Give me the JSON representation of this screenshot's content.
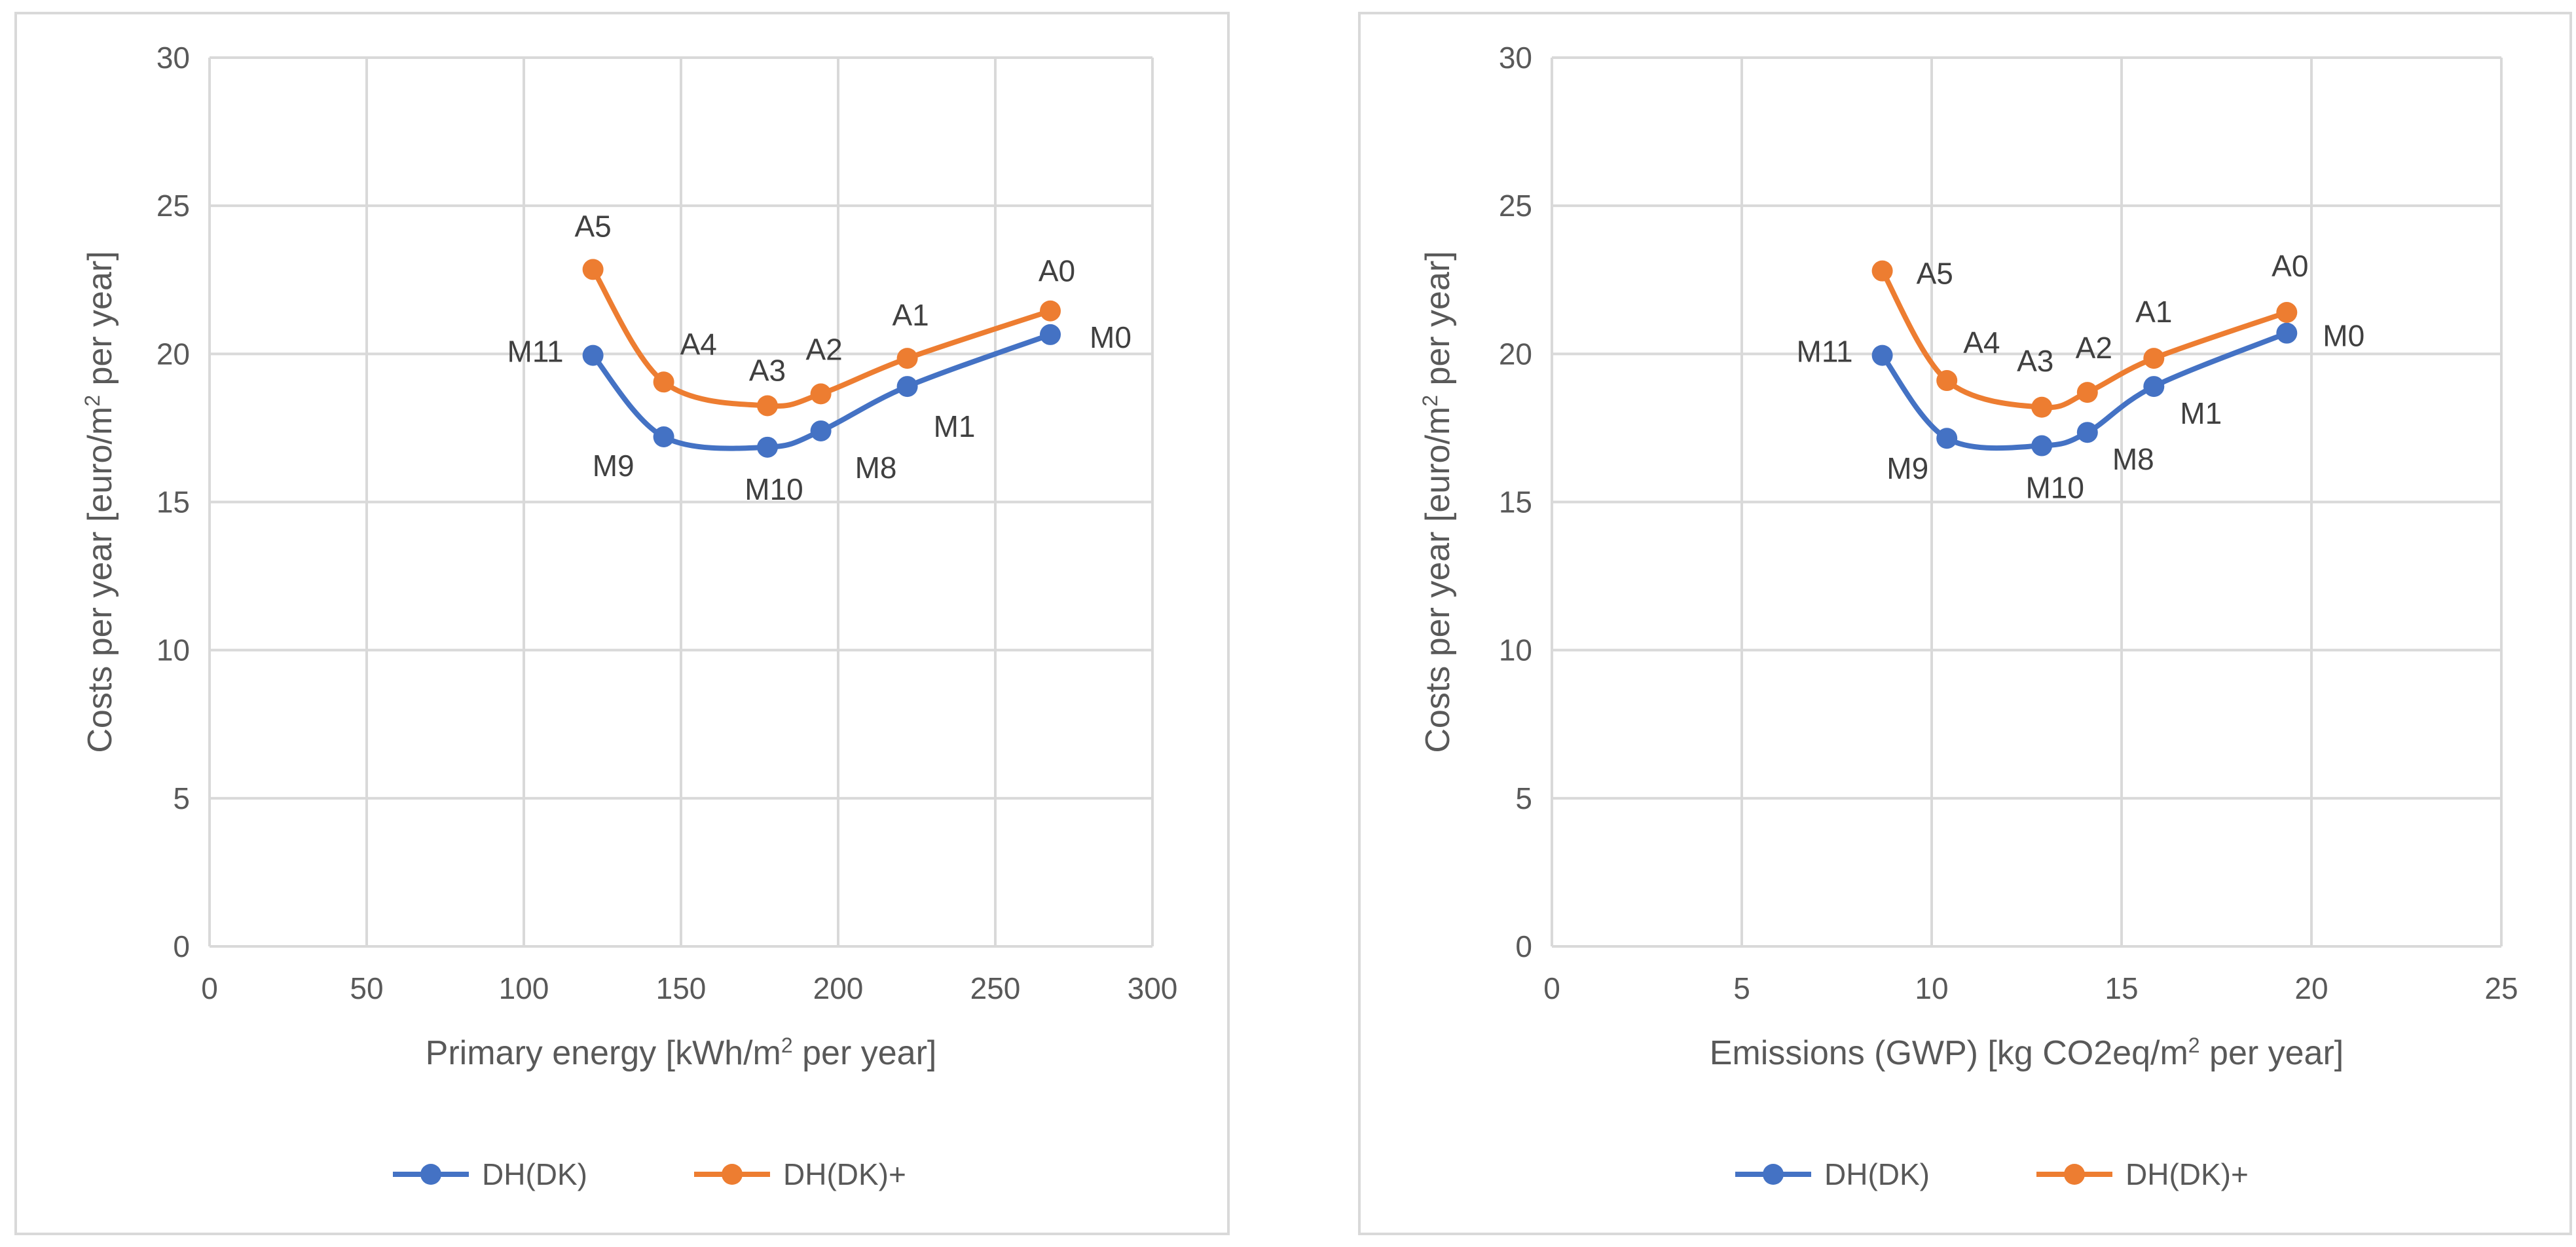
{
  "colors": {
    "series_blue": "#4472c4",
    "series_orange": "#ed7d31",
    "grid": "#d9d9d9",
    "axis_text": "#595959",
    "label_text": "#404040"
  },
  "chart_data": [
    {
      "type": "line",
      "title": "",
      "xlabel_parts": [
        "Primary energy [kWh/m",
        "2",
        " per year]"
      ],
      "ylabel_parts": [
        "Costs per year [euro/m",
        "2",
        " per year]"
      ],
      "xlim": [
        0,
        300
      ],
      "ylim": [
        0,
        30
      ],
      "xticks": [
        0,
        50,
        100,
        150,
        200,
        250,
        300
      ],
      "yticks": [
        0,
        5,
        10,
        15,
        20,
        25,
        30
      ],
      "legend_position": "bottom",
      "series": [
        {
          "name": "DH(DK)",
          "color": "#4472c4",
          "points": [
            {
              "label": "M11",
              "x": 122,
              "y": 19.95
            },
            {
              "label": "M9",
              "x": 144.5,
              "y": 17.2
            },
            {
              "label": "M10",
              "x": 177.5,
              "y": 16.85
            },
            {
              "label": "M8",
              "x": 194.5,
              "y": 17.4
            },
            {
              "label": "M1",
              "x": 222,
              "y": 18.9
            },
            {
              "label": "M0",
              "x": 267.5,
              "y": 20.65
            }
          ]
        },
        {
          "name": "DH(DK)+",
          "color": "#ed7d31",
          "points": [
            {
              "label": "A5",
              "x": 122,
              "y": 22.85
            },
            {
              "label": "A4",
              "x": 144.5,
              "y": 19.05
            },
            {
              "label": "A3",
              "x": 177.5,
              "y": 18.25
            },
            {
              "label": "A2",
              "x": 194.5,
              "y": 18.65
            },
            {
              "label": "A1",
              "x": 222,
              "y": 19.85
            },
            {
              "label": "A0",
              "x": 267.5,
              "y": 21.45
            }
          ]
        }
      ]
    },
    {
      "type": "line",
      "title": "",
      "xlabel_parts": [
        "Emissions (GWP) [kg CO2eq/m",
        "2",
        " per year]"
      ],
      "ylabel_parts": [
        "Costs per year [euro/m",
        "2",
        " per year]"
      ],
      "xlim": [
        0,
        25
      ],
      "ylim": [
        0,
        30
      ],
      "xticks": [
        0,
        5,
        10,
        15,
        20,
        25
      ],
      "yticks": [
        0,
        5,
        10,
        15,
        20,
        25,
        30
      ],
      "legend_position": "bottom",
      "series": [
        {
          "name": "DH(DK)",
          "color": "#4472c4",
          "points": [
            {
              "label": "M11",
              "x": 8.7,
              "y": 19.95
            },
            {
              "label": "M9",
              "x": 10.4,
              "y": 17.15
            },
            {
              "label": "M10",
              "x": 12.9,
              "y": 16.9
            },
            {
              "label": "M8",
              "x": 14.1,
              "y": 17.35
            },
            {
              "label": "M1",
              "x": 15.85,
              "y": 18.9
            },
            {
              "label": "M0",
              "x": 19.35,
              "y": 20.7
            }
          ]
        },
        {
          "name": "DH(DK)+",
          "color": "#ed7d31",
          "points": [
            {
              "label": "A5",
              "x": 8.7,
              "y": 22.8
            },
            {
              "label": "A4",
              "x": 10.4,
              "y": 19.1
            },
            {
              "label": "A3",
              "x": 12.9,
              "y": 18.2
            },
            {
              "label": "A2",
              "x": 14.1,
              "y": 18.7
            },
            {
              "label": "A1",
              "x": 15.85,
              "y": 19.85
            },
            {
              "label": "A0",
              "x": 19.35,
              "y": 21.4
            }
          ]
        }
      ]
    }
  ]
}
